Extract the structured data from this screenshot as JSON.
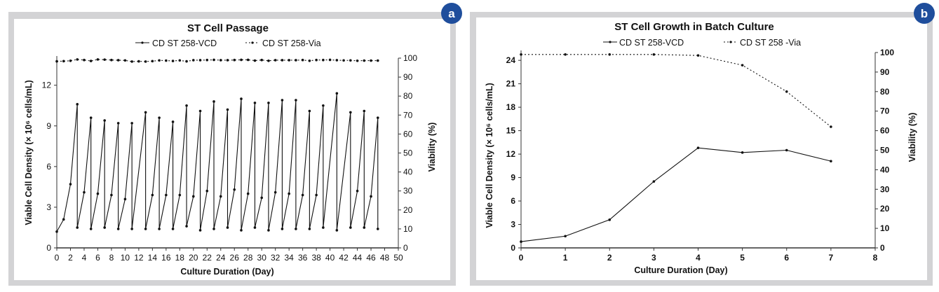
{
  "chart_data": [
    {
      "type": "line",
      "panel_label": "a",
      "title": "ST Cell Passage",
      "xlabel": "Culture Duration (Day)",
      "ylabel": "Viable Cell Density (× 10⁶ cells/mL)",
      "y2label": "Viability (%)",
      "xlim": [
        0,
        50
      ],
      "ylim": [
        0,
        14
      ],
      "y2lim": [
        0,
        100
      ],
      "xticks": [
        0,
        2,
        4,
        6,
        8,
        10,
        12,
        14,
        16,
        18,
        20,
        22,
        24,
        26,
        28,
        30,
        32,
        34,
        36,
        38,
        40,
        42,
        44,
        46,
        48,
        50
      ],
      "yticks": [
        0,
        3,
        6,
        9,
        12
      ],
      "y2ticks": [
        0,
        10,
        20,
        30,
        40,
        50,
        60,
        70,
        80,
        90,
        100
      ],
      "legend": [
        "CD ST 258-VCD",
        "CD ST 258-Via"
      ],
      "legend_position": "top-center",
      "series": [
        {
          "name": "CD ST 258-VCD",
          "axis": "left",
          "style": "solid",
          "points": [
            [
              0,
              1.2
            ],
            [
              1,
              2.1
            ],
            [
              2,
              4.7
            ],
            [
              3,
              10.6
            ],
            [
              3,
              1.5
            ],
            [
              4,
              4.1
            ],
            [
              5,
              9.6
            ],
            [
              5,
              1.4
            ],
            [
              6,
              4.0
            ],
            [
              7,
              9.4
            ],
            [
              7,
              1.5
            ],
            [
              8,
              3.9
            ],
            [
              9,
              9.2
            ],
            [
              9,
              1.4
            ],
            [
              10,
              3.6
            ],
            [
              11,
              9.2
            ],
            [
              11,
              1.4
            ],
            [
              13,
              10.0
            ],
            [
              13,
              1.4
            ],
            [
              14,
              3.9
            ],
            [
              15,
              9.6
            ],
            [
              15,
              1.4
            ],
            [
              16,
              3.9
            ],
            [
              17,
              9.3
            ],
            [
              17,
              1.4
            ],
            [
              18,
              3.9
            ],
            [
              19,
              10.5
            ],
            [
              19,
              1.6
            ],
            [
              20,
              3.8
            ],
            [
              21,
              10.1
            ],
            [
              21,
              1.3
            ],
            [
              22,
              4.2
            ],
            [
              23,
              10.8
            ],
            [
              23,
              1.4
            ],
            [
              24,
              3.8
            ],
            [
              25,
              10.2
            ],
            [
              25,
              1.5
            ],
            [
              26,
              4.3
            ],
            [
              27,
              11.0
            ],
            [
              27,
              1.3
            ],
            [
              28,
              4.0
            ],
            [
              29,
              10.7
            ],
            [
              29,
              1.5
            ],
            [
              30,
              3.7
            ],
            [
              31,
              10.7
            ],
            [
              31,
              1.3
            ],
            [
              32,
              4.1
            ],
            [
              33,
              10.9
            ],
            [
              33,
              1.4
            ],
            [
              34,
              4.0
            ],
            [
              35,
              10.9
            ],
            [
              35,
              1.4
            ],
            [
              36,
              3.9
            ],
            [
              37,
              10.1
            ],
            [
              37,
              1.4
            ],
            [
              38,
              3.9
            ],
            [
              39,
              10.5
            ],
            [
              39,
              1.5
            ],
            [
              41,
              11.4
            ],
            [
              41,
              1.3
            ],
            [
              43,
              10.0
            ],
            [
              43,
              1.5
            ],
            [
              44,
              4.2
            ],
            [
              45,
              10.1
            ],
            [
              45,
              1.5
            ],
            [
              46,
              3.8
            ],
            [
              47,
              9.6
            ],
            [
              47,
              1.4
            ]
          ]
        },
        {
          "name": "CD ST 258-Via",
          "axis": "right",
          "style": "dashed",
          "points": [
            [
              0,
              98.3
            ],
            [
              1,
              98.4
            ],
            [
              2,
              98.6
            ],
            [
              3,
              99.3
            ],
            [
              4,
              99.0
            ],
            [
              5,
              98.5
            ],
            [
              6,
              99.3
            ],
            [
              7,
              99.2
            ],
            [
              8,
              99.0
            ],
            [
              9,
              98.9
            ],
            [
              10,
              98.8
            ],
            [
              11,
              98.2
            ],
            [
              12,
              98.3
            ],
            [
              13,
              98.2
            ],
            [
              14,
              98.4
            ],
            [
              15,
              98.8
            ],
            [
              16,
              98.7
            ],
            [
              17,
              98.5
            ],
            [
              18,
              98.8
            ],
            [
              19,
              98.3
            ],
            [
              20,
              98.9
            ],
            [
              21,
              98.9
            ],
            [
              22,
              99.0
            ],
            [
              23,
              99.1
            ],
            [
              24,
              98.9
            ],
            [
              25,
              98.9
            ],
            [
              26,
              99.0
            ],
            [
              27,
              99.1
            ],
            [
              28,
              99.1
            ],
            [
              29,
              98.7
            ],
            [
              30,
              99.0
            ],
            [
              31,
              98.6
            ],
            [
              32,
              98.9
            ],
            [
              33,
              98.9
            ],
            [
              34,
              98.9
            ],
            [
              35,
              98.9
            ],
            [
              36,
              99.0
            ],
            [
              37,
              98.6
            ],
            [
              38,
              99.0
            ],
            [
              39,
              99.0
            ],
            [
              40,
              99.1
            ],
            [
              41,
              98.9
            ],
            [
              42,
              98.8
            ],
            [
              43,
              98.8
            ],
            [
              44,
              98.6
            ],
            [
              45,
              98.7
            ],
            [
              46,
              98.7
            ],
            [
              47,
              98.7
            ]
          ]
        }
      ]
    },
    {
      "type": "line",
      "panel_label": "b",
      "title": "ST Cell Growth in Batch Culture",
      "xlabel": "Culture Duration (Day)",
      "ylabel": "Viable Cell Density (× 10⁶ cells/mL)",
      "y2label": "Viability (%)",
      "xlim": [
        0,
        8
      ],
      "ylim": [
        0,
        25
      ],
      "y2lim": [
        0,
        100
      ],
      "xticks": [
        0,
        1,
        2,
        3,
        4,
        5,
        6,
        7,
        8
      ],
      "yticks": [
        0,
        3,
        6,
        9,
        12,
        15,
        18,
        21,
        24
      ],
      "y2ticks": [
        0,
        10,
        20,
        30,
        40,
        50,
        60,
        70,
        80,
        90,
        100
      ],
      "legend": [
        "CD ST 258-VCD",
        "CD ST 258 -Via"
      ],
      "legend_position": "top-center",
      "series": [
        {
          "name": "CD ST 258-VCD",
          "axis": "left",
          "style": "solid",
          "points": [
            [
              0,
              0.8
            ],
            [
              1,
              1.5
            ],
            [
              2,
              3.6
            ],
            [
              3,
              8.5
            ],
            [
              4,
              12.8
            ],
            [
              5,
              12.2
            ],
            [
              6,
              12.5
            ],
            [
              7,
              11.1
            ]
          ]
        },
        {
          "name": "CD ST 258 -Via",
          "axis": "right",
          "style": "dashed",
          "points": [
            [
              0,
              99
            ],
            [
              1,
              99
            ],
            [
              2,
              99
            ],
            [
              3,
              99
            ],
            [
              4,
              98.5
            ],
            [
              5,
              93.5
            ],
            [
              6,
              80
            ],
            [
              7,
              62
            ]
          ]
        }
      ]
    }
  ],
  "colors": {
    "frame": "#d3d3d5",
    "badge": "#1f4e9c",
    "line": "#111111"
  }
}
